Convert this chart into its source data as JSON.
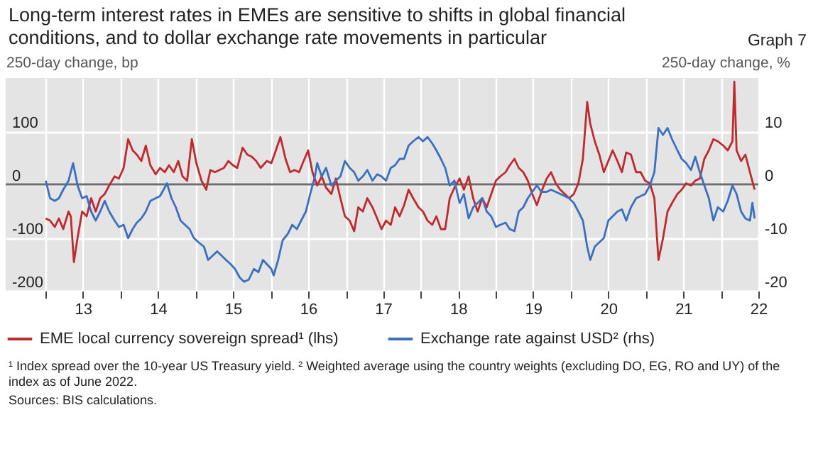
{
  "chart_data": {
    "type": "line",
    "title": "Long-term interest rates in EMEs are sensitive to shifts in global financial conditions, and to dollar exchange rate movements in particular",
    "subtitle": "Graph 7",
    "ylabel": "250-day change, bp",
    "y2label": "250-day change, %",
    "xlim": [
      "2012-06-20",
      "2022-07-01"
    ],
    "xticks": [
      {
        "value": "2013-01-01",
        "label": null
      },
      {
        "value": "2013-07-01",
        "label": "13"
      },
      {
        "value": "2014-01-01",
        "label": null
      },
      {
        "value": "2014-07-01",
        "label": "14"
      },
      {
        "value": "2015-01-01",
        "label": null
      },
      {
        "value": "2015-07-01",
        "label": "15"
      },
      {
        "value": "2016-01-01",
        "label": null
      },
      {
        "value": "2016-07-01",
        "label": "16"
      },
      {
        "value": "2017-01-01",
        "label": null
      },
      {
        "value": "2017-07-01",
        "label": "17"
      },
      {
        "value": "2018-01-01",
        "label": null
      },
      {
        "value": "2018-07-01",
        "label": "18"
      },
      {
        "value": "2019-01-01",
        "label": null
      },
      {
        "value": "2019-07-01",
        "label": "19"
      },
      {
        "value": "2020-01-01",
        "label": null
      },
      {
        "value": "2020-07-01",
        "label": "20"
      },
      {
        "value": "2021-01-01",
        "label": null
      },
      {
        "value": "2021-07-01",
        "label": "21"
      },
      {
        "value": "2022-01-01",
        "label": null
      },
      {
        "value": "2022-07-01",
        "label": "22"
      }
    ],
    "ylim": [
      -200,
      200
    ],
    "yticks": [
      -200,
      -100,
      0,
      100
    ],
    "y2lim": [
      -20,
      20
    ],
    "y2ticks": [
      -20,
      -10,
      0,
      10
    ],
    "grid": true,
    "legend": "bottom",
    "ref_lines": [
      {
        "axis": "y",
        "value": 0,
        "color": "#6e6e6e"
      }
    ],
    "series": [
      {
        "name": "EME local currency sovereign spread¹ (lhs)",
        "color": "#be2a2e",
        "x": [
          "2013-01-01",
          "2013-01-22",
          "2013-02-14",
          "2013-03-06",
          "2013-03-27",
          "2013-04-22",
          "2013-05-03",
          "2013-05-18",
          "2013-06-05",
          "2013-06-27",
          "2013-07-19",
          "2013-08-10",
          "2013-09-01",
          "2013-09-23",
          "2013-10-15",
          "2013-11-06",
          "2013-12-02",
          "2013-12-23",
          "2014-01-15",
          "2014-02-06",
          "2014-02-28",
          "2014-03-20",
          "2014-04-11",
          "2014-05-03",
          "2014-05-25",
          "2014-06-20",
          "2014-07-11",
          "2014-08-03",
          "2014-08-24",
          "2014-09-16",
          "2014-10-08",
          "2014-10-29",
          "2014-11-20",
          "2014-12-13",
          "2015-01-04",
          "2015-01-29",
          "2015-02-21",
          "2015-03-13",
          "2015-04-04",
          "2015-04-26",
          "2015-05-18",
          "2015-06-09",
          "2015-07-01",
          "2015-07-22",
          "2015-08-17",
          "2015-09-09",
          "2015-10-01",
          "2015-10-22",
          "2015-11-13",
          "2015-12-13",
          "2016-01-04",
          "2016-01-26",
          "2016-02-17",
          "2016-03-13",
          "2016-04-04",
          "2016-04-26",
          "2016-05-18",
          "2016-06-09",
          "2016-07-01",
          "2016-07-22",
          "2016-08-14",
          "2016-09-05",
          "2016-09-26",
          "2016-10-22",
          "2016-11-13",
          "2016-12-05",
          "2016-12-27",
          "2017-01-19",
          "2017-02-10",
          "2017-03-02",
          "2017-03-24",
          "2017-04-15",
          "2017-05-10",
          "2017-06-02",
          "2017-06-23",
          "2017-07-15",
          "2017-08-07",
          "2017-08-28",
          "2017-09-19",
          "2017-10-11",
          "2017-11-02",
          "2017-11-24",
          "2017-12-20",
          "2018-01-11",
          "2018-02-02",
          "2018-02-25",
          "2018-03-17",
          "2018-04-08",
          "2018-04-29",
          "2018-05-21",
          "2018-06-13",
          "2018-07-08",
          "2018-07-29",
          "2018-08-21",
          "2018-09-12",
          "2018-10-04",
          "2018-10-26",
          "2018-11-17",
          "2018-12-09",
          "2019-01-01",
          "2019-01-22",
          "2019-02-17",
          "2019-03-09",
          "2019-04-01",
          "2019-04-22",
          "2019-05-14",
          "2019-06-05",
          "2019-06-27",
          "2019-07-19",
          "2019-08-10",
          "2019-09-05",
          "2019-09-26",
          "2019-10-19",
          "2019-11-10",
          "2019-12-02",
          "2019-12-23",
          "2020-01-15",
          "2020-02-06",
          "2020-02-28",
          "2020-03-20",
          "2020-04-04",
          "2020-04-26",
          "2020-05-18",
          "2020-06-09",
          "2020-07-01",
          "2020-07-22",
          "2020-08-14",
          "2020-09-05",
          "2020-09-26",
          "2020-10-19",
          "2020-11-13",
          "2020-12-05",
          "2020-12-27",
          "2021-01-19",
          "2021-02-10",
          "2021-03-02",
          "2021-03-24",
          "2021-04-15",
          "2021-05-07",
          "2021-06-02",
          "2021-06-23",
          "2021-07-15",
          "2021-08-07",
          "2021-08-28",
          "2021-09-19",
          "2021-10-11",
          "2021-11-02",
          "2021-11-24",
          "2021-12-16",
          "2022-01-11",
          "2022-02-02",
          "2022-02-25",
          "2022-03-06",
          "2022-03-17",
          "2022-04-08",
          "2022-04-29",
          "2022-05-21",
          "2022-06-13"
        ],
        "values": [
          -64,
          -68,
          -80,
          -64,
          -84,
          -51,
          -60,
          -146,
          -100,
          -51,
          -60,
          -26,
          -51,
          -26,
          -18,
          -2,
          15,
          11,
          31,
          85,
          64,
          56,
          44,
          73,
          36,
          19,
          31,
          23,
          36,
          23,
          44,
          15,
          7,
          85,
          40,
          7,
          -10,
          27,
          23,
          27,
          31,
          44,
          36,
          31,
          69,
          56,
          52,
          44,
          31,
          44,
          40,
          64,
          89,
          48,
          23,
          27,
          23,
          44,
          64,
          23,
          -2,
          15,
          -6,
          -18,
          11,
          -26,
          -60,
          -68,
          -88,
          -43,
          -51,
          -26,
          -43,
          -64,
          -84,
          -68,
          -76,
          -43,
          -60,
          -39,
          -10,
          -26,
          -43,
          -51,
          -68,
          -76,
          -60,
          -84,
          -84,
          -26,
          -6,
          11,
          -10,
          15,
          -26,
          -51,
          -26,
          -43,
          -18,
          7,
          15,
          23,
          36,
          48,
          31,
          23,
          7,
          -18,
          -39,
          -14,
          11,
          23,
          2,
          -10,
          -18,
          -26,
          -18,
          2,
          48,
          155,
          114,
          81,
          56,
          23,
          44,
          64,
          44,
          23,
          60,
          56,
          23,
          23,
          7,
          2,
          -26,
          -142,
          -101,
          -51,
          -35,
          -18,
          -10,
          2,
          -2,
          7,
          11,
          48,
          64,
          85,
          81,
          73,
          64,
          81,
          193,
          64,
          44,
          56,
          23,
          -10
        ]
      },
      {
        "name": "Exchange rate against USD² (rhs)",
        "color": "#3c6fbf",
        "axis": "y2",
        "x": [
          "2013-01-01",
          "2013-01-22",
          "2013-02-14",
          "2013-03-06",
          "2013-03-27",
          "2013-04-22",
          "2013-05-14",
          "2013-06-05",
          "2013-06-27",
          "2013-07-19",
          "2013-08-10",
          "2013-09-01",
          "2013-09-23",
          "2013-10-15",
          "2013-11-06",
          "2013-12-02",
          "2013-12-23",
          "2014-01-15",
          "2014-02-06",
          "2014-02-28",
          "2014-03-20",
          "2014-04-11",
          "2014-05-03",
          "2014-05-25",
          "2014-06-20",
          "2014-07-11",
          "2014-08-03",
          "2014-08-14",
          "2014-09-05",
          "2014-09-26",
          "2014-10-19",
          "2014-11-10",
          "2014-12-02",
          "2014-12-23",
          "2015-01-15",
          "2015-02-10",
          "2015-03-02",
          "2015-03-24",
          "2015-04-15",
          "2015-05-07",
          "2015-05-28",
          "2015-06-20",
          "2015-07-11",
          "2015-08-03",
          "2015-08-24",
          "2015-09-16",
          "2015-10-11",
          "2015-11-02",
          "2015-11-24",
          "2015-12-13",
          "2016-01-04",
          "2016-01-15",
          "2016-02-06",
          "2016-02-28",
          "2016-03-24",
          "2016-04-15",
          "2016-05-07",
          "2016-05-28",
          "2016-06-20",
          "2016-07-11",
          "2016-08-03",
          "2016-08-14",
          "2016-09-05",
          "2016-09-26",
          "2016-10-22",
          "2016-11-13",
          "2016-12-05",
          "2016-12-27",
          "2017-01-19",
          "2017-02-10",
          "2017-03-02",
          "2017-03-24",
          "2017-04-15",
          "2017-05-10",
          "2017-06-02",
          "2017-06-23",
          "2017-07-15",
          "2017-08-07",
          "2017-08-28",
          "2017-09-19",
          "2017-10-11",
          "2017-11-02",
          "2017-11-24",
          "2017-12-20",
          "2018-01-11",
          "2018-02-02",
          "2018-02-25",
          "2018-03-17",
          "2018-04-08",
          "2018-04-29",
          "2018-05-21",
          "2018-06-13",
          "2018-07-08",
          "2018-07-29",
          "2018-08-21",
          "2018-09-12",
          "2018-10-04",
          "2018-10-26",
          "2018-11-17",
          "2018-12-09",
          "2019-01-01",
          "2019-01-22",
          "2019-02-17",
          "2019-03-09",
          "2019-04-01",
          "2019-04-22",
          "2019-05-14",
          "2019-06-05",
          "2019-06-27",
          "2019-07-19",
          "2019-08-10",
          "2019-09-05",
          "2019-09-26",
          "2019-10-19",
          "2019-11-10",
          "2019-12-02",
          "2019-12-23",
          "2020-01-15",
          "2020-02-06",
          "2020-02-28",
          "2020-03-20",
          "2020-04-04",
          "2020-04-26",
          "2020-05-18",
          "2020-06-09",
          "2020-07-01",
          "2020-07-22",
          "2020-08-14",
          "2020-09-05",
          "2020-09-26",
          "2020-10-19",
          "2020-11-13",
          "2020-12-05",
          "2020-12-27",
          "2021-01-19",
          "2021-02-10",
          "2021-03-02",
          "2021-03-24",
          "2021-04-15",
          "2021-05-07",
          "2021-06-02",
          "2021-06-23",
          "2021-07-15",
          "2021-08-07",
          "2021-08-28",
          "2021-09-19",
          "2021-10-11",
          "2021-11-02",
          "2021-11-24",
          "2021-12-16",
          "2022-01-11",
          "2022-02-02",
          "2022-02-25",
          "2022-03-17",
          "2022-04-08",
          "2022-04-29",
          "2022-05-21",
          "2022-06-02",
          "2022-06-13"
        ],
        "values": [
          0.7,
          -2.6,
          -3.1,
          -2.6,
          -1.0,
          0.7,
          4.0,
          -0.2,
          -2.6,
          -2.2,
          -5.1,
          -6.8,
          -5.1,
          -3.1,
          -5.1,
          -6.8,
          -8.0,
          -7.6,
          -10.1,
          -8.4,
          -7.2,
          -6.4,
          -5.1,
          -3.1,
          -2.6,
          -2.2,
          -0.6,
          0.2,
          -2.6,
          -4.3,
          -6.8,
          -7.6,
          -8.4,
          -10.1,
          -10.9,
          -11.7,
          -14.2,
          -13.4,
          -12.6,
          -13.4,
          -14.2,
          -15.0,
          -15.9,
          -17.5,
          -18.3,
          -17.9,
          -15.9,
          -16.5,
          -14.2,
          -15.0,
          -15.9,
          -17.1,
          -14.2,
          -10.5,
          -9.3,
          -7.6,
          -8.4,
          -6.8,
          -5.1,
          -1.8,
          1.5,
          4.0,
          1.5,
          3.1,
          -0.2,
          0.7,
          1.5,
          4.4,
          3.1,
          2.3,
          0.7,
          1.5,
          2.7,
          0.7,
          1.9,
          1.5,
          0.7,
          3.1,
          3.6,
          4.8,
          4.8,
          7.3,
          8.1,
          8.9,
          8.1,
          8.9,
          7.7,
          6.4,
          4.8,
          3.1,
          -0.2,
          0.7,
          -3.5,
          -1.8,
          -6.4,
          -4.3,
          -3.5,
          -2.6,
          -5.1,
          -6.0,
          -8.0,
          -7.6,
          -7.2,
          -8.4,
          -8.8,
          -5.1,
          -4.3,
          -2.6,
          -1.4,
          -0.2,
          -1.4,
          -1.4,
          -1.0,
          -1.4,
          -1.8,
          -2.2,
          -2.6,
          -3.5,
          -5.1,
          -6.8,
          -11.7,
          -14.2,
          -11.7,
          -10.9,
          -10.1,
          -6.8,
          -6.0,
          -5.1,
          -4.7,
          -6.8,
          -4.3,
          -2.6,
          -2.2,
          -1.8,
          -0.2,
          2.3,
          10.6,
          9.3,
          10.6,
          8.5,
          6.4,
          4.8,
          4.0,
          2.7,
          5.2,
          2.3,
          -0.2,
          -2.6,
          -6.8,
          -4.3,
          -5.1,
          -3.1,
          -0.2,
          -1.8,
          -5.1,
          -6.4,
          -6.8,
          -3.5,
          -6.4
        ]
      }
    ],
    "annotations": [
      "¹ Index spread over the 10-year US Treasury yield.  ² Weighted average using the country weights (excluding DO, EG, RO and UY) of the index as of June 2022.",
      "Sources: BIS calculations."
    ]
  }
}
